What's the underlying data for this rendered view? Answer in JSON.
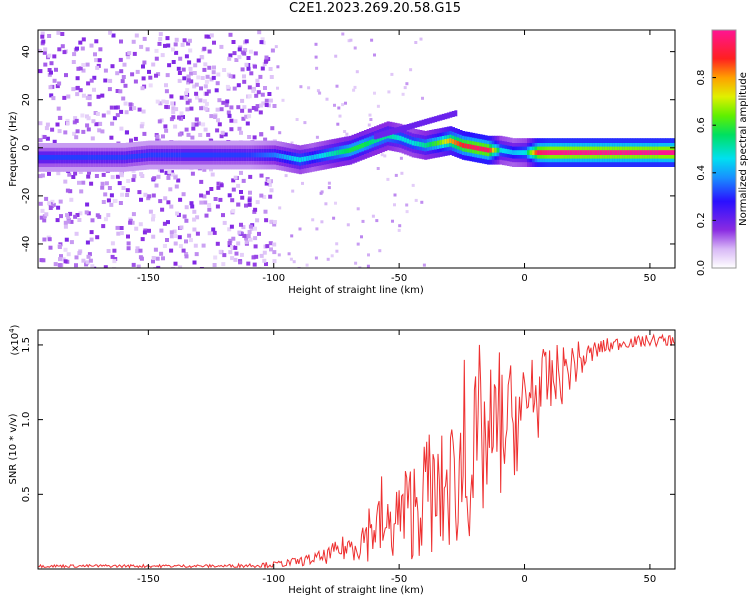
{
  "title": "C2E1.2023.269.20.58.G15",
  "chart_data": [
    {
      "type": "heatmap",
      "xlabel": "Height of straight line (km)",
      "ylabel": "Frequency (Hz)",
      "xlim": [
        -194,
        60
      ],
      "ylim": [
        -50,
        49
      ],
      "xticks": [
        -150,
        -100,
        -50,
        0,
        50
      ],
      "yticks": [
        -40,
        -20,
        0,
        20,
        40
      ],
      "grid": false,
      "colorbar": {
        "label": "Normalized spectral amplitude",
        "range": [
          0,
          1
        ],
        "ticks": [
          "0.0",
          "0.2",
          "0.4",
          "0.6",
          "0.8"
        ]
      },
      "ridge": {
        "x": [
          -192,
          -180,
          -170,
          -160,
          -150,
          -140,
          -130,
          -120,
          -110,
          -100,
          -95,
          -90,
          -85,
          -80,
          -75,
          -70,
          -65,
          -60,
          -55,
          -50,
          -45,
          -40,
          -35,
          -30,
          -25,
          -20,
          -15,
          -10,
          -5,
          0,
          5,
          10,
          20,
          30,
          40,
          50,
          60
        ],
        "y": [
          -4,
          -4,
          -4,
          -4,
          -3,
          -3,
          -3,
          -3,
          -3,
          -3,
          -4,
          -5,
          -4,
          -3,
          -2,
          -1,
          1,
          3,
          5,
          4,
          2,
          1,
          2,
          3,
          1,
          0,
          -1,
          -1,
          -2,
          -2,
          -2,
          -2,
          -2,
          -2,
          -2,
          -2,
          -2
        ],
        "amplitude": [
          0.3,
          0.3,
          0.3,
          0.3,
          0.3,
          0.3,
          0.3,
          0.3,
          0.3,
          0.35,
          0.4,
          0.45,
          0.4,
          0.45,
          0.5,
          0.55,
          0.55,
          0.5,
          0.5,
          0.45,
          0.45,
          0.5,
          0.6,
          0.75,
          0.85,
          0.9,
          0.9,
          0.45,
          0.4,
          0.45,
          0.9,
          0.95,
          0.95,
          0.95,
          0.95,
          0.95,
          0.95
        ]
      }
    },
    {
      "type": "line",
      "xlabel": "Height of straight line (km)",
      "ylabel": "SNR (10 * v/v)",
      "multiplier": "(x10",
      "multiplier_exp": "4",
      "xlim": [
        -194,
        60
      ],
      "ylim": [
        0,
        1.6
      ],
      "xticks": [
        -150,
        -100,
        -50,
        0,
        50
      ],
      "yticks": [
        0.5,
        1.0,
        1.5
      ],
      "grid": false,
      "series": [
        {
          "color": "#ee3030",
          "x": [
            -194,
            -180,
            -160,
            -140,
            -120,
            -100,
            -90,
            -80,
            -75,
            -70,
            -65,
            -60,
            -55,
            -50,
            -45,
            -40,
            -35,
            -30,
            -25,
            -20,
            -15,
            -10,
            -5,
            0,
            5,
            10,
            15,
            20,
            25,
            30,
            35,
            40,
            45,
            50,
            55,
            60
          ],
          "y": [
            0.02,
            0.02,
            0.02,
            0.02,
            0.02,
            0.03,
            0.05,
            0.08,
            0.12,
            0.15,
            0.2,
            0.3,
            0.25,
            0.35,
            0.4,
            0.5,
            0.45,
            0.55,
            0.65,
            0.75,
            0.85,
            0.9,
            1.0,
            1.05,
            1.15,
            1.25,
            1.3,
            1.38,
            1.42,
            1.48,
            1.5,
            1.52,
            1.52,
            1.53,
            1.53,
            1.53
          ],
          "amplitude": [
            0.01,
            0.01,
            0.01,
            0.01,
            0.01,
            0.02,
            0.03,
            0.05,
            0.07,
            0.1,
            0.15,
            0.25,
            0.2,
            0.3,
            0.35,
            0.4,
            0.4,
            0.45,
            0.5,
            0.55,
            0.5,
            0.45,
            0.4,
            0.35,
            0.3,
            0.25,
            0.2,
            0.15,
            0.1,
            0.06,
            0.05,
            0.04,
            0.04,
            0.04,
            0.04,
            0.04
          ],
          "annotated_peaks": [
            {
              "x": -57,
              "y": 0.62
            },
            {
              "x": -38,
              "y": 0.9
            },
            {
              "x": -24,
              "y": 1.4
            },
            {
              "x": -18,
              "y": 1.5
            },
            {
              "x": -10,
              "y": 1.45
            },
            {
              "x": 3,
              "y": 1.4
            }
          ]
        }
      ]
    }
  ]
}
